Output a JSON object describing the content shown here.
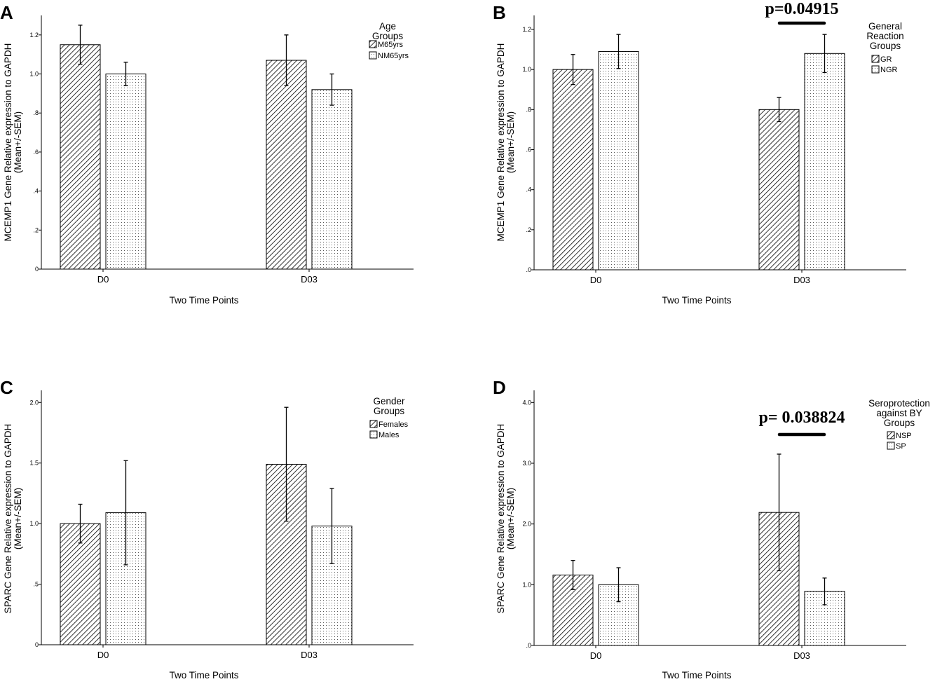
{
  "chart_data": [
    {
      "panel": "A",
      "type": "bar",
      "title": "",
      "categories": [
        "D0",
        "D03"
      ],
      "xlabel": "Two Time Points",
      "ylabel": [
        "MCEMP1 Gene Relative expression to GAPDH",
        "(Mean+/-SEM)"
      ],
      "ylim": [
        0,
        1.3
      ],
      "yticks": [
        0,
        0.2,
        0.4,
        0.6,
        0.8,
        1.0,
        1.2
      ],
      "ytick_labels": [
        "0",
        ".2",
        ".4",
        ".6",
        ".8",
        "1.0",
        "1.2"
      ],
      "legend_title": [
        "Age",
        "Groups"
      ],
      "series": [
        {
          "name": "M65yrs",
          "pattern": "hatch",
          "values": [
            1.15,
            1.07
          ],
          "errors": [
            0.1,
            0.13
          ]
        },
        {
          "name": "NM65yrs",
          "pattern": "dots",
          "values": [
            1.0,
            0.92
          ],
          "errors": [
            0.06,
            0.08
          ]
        }
      ],
      "annotation": null
    },
    {
      "panel": "B",
      "type": "bar",
      "title": "",
      "categories": [
        "D0",
        "D03"
      ],
      "xlabel": "Two Time Points",
      "ylabel": [
        "MCEMP1 Gene Relative expression to GAPDH",
        "(Mean+/-SEM)"
      ],
      "ylim": [
        0,
        1.27
      ],
      "yticks": [
        0,
        0.2,
        0.4,
        0.6,
        0.8,
        1.0,
        1.2
      ],
      "ytick_labels": [
        ".0",
        ".2",
        ".4",
        ".6",
        ".8",
        "1.0",
        "1.2"
      ],
      "legend_title": [
        "General",
        "Reaction",
        "Groups"
      ],
      "series": [
        {
          "name": "GR",
          "pattern": "hatch",
          "values": [
            1.0,
            0.8
          ],
          "errors": [
            0.075,
            0.06
          ]
        },
        {
          "name": "NGR",
          "pattern": "dots",
          "values": [
            1.09,
            1.08
          ],
          "errors": [
            0.085,
            0.095
          ]
        }
      ],
      "annotation": {
        "text": "p=0.04915",
        "category": "D03"
      }
    },
    {
      "panel": "C",
      "type": "bar",
      "title": "",
      "categories": [
        "D0",
        "D03"
      ],
      "xlabel": "Two Time Points",
      "ylabel": [
        "SPARC Gene Relative expression to GAPDH",
        "(Mean+/-SEM)"
      ],
      "ylim": [
        0,
        2.1
      ],
      "yticks": [
        0,
        0.5,
        1.0,
        1.5,
        2.0
      ],
      "ytick_labels": [
        "0",
        ".5",
        "1.0",
        "1.5",
        "2.0"
      ],
      "legend_title": [
        "Gender",
        "Groups"
      ],
      "series": [
        {
          "name": "Females",
          "pattern": "hatch",
          "values": [
            1.0,
            1.49
          ],
          "errors": [
            0.16,
            0.47
          ]
        },
        {
          "name": "Males",
          "pattern": "dots",
          "values": [
            1.09,
            0.98
          ],
          "errors": [
            0.43,
            0.31
          ]
        }
      ],
      "annotation": null
    },
    {
      "panel": "D",
      "type": "bar",
      "title": "",
      "categories": [
        "D0",
        "D03"
      ],
      "xlabel": "Two Time Points",
      "ylabel": [
        "SPARC Gene Relative expression to GAPDH",
        "(Mean+/-SEM)"
      ],
      "ylim": [
        0,
        4.2
      ],
      "yticks": [
        0,
        1.0,
        2.0,
        3.0,
        4.0
      ],
      "ytick_labels": [
        ".0",
        "1.0",
        "2.0",
        "3.0",
        "4.0"
      ],
      "legend_title": [
        "Seroprotection",
        "against BY",
        "Groups"
      ],
      "series": [
        {
          "name": "NSP",
          "pattern": "hatch",
          "values": [
            1.16,
            2.19
          ],
          "errors": [
            0.24,
            0.96
          ]
        },
        {
          "name": "SP",
          "pattern": "dots",
          "values": [
            1.0,
            0.89
          ],
          "errors": [
            0.28,
            0.22
          ]
        }
      ],
      "annotation": {
        "text": "p= 0.038824",
        "category": "D03"
      }
    }
  ]
}
